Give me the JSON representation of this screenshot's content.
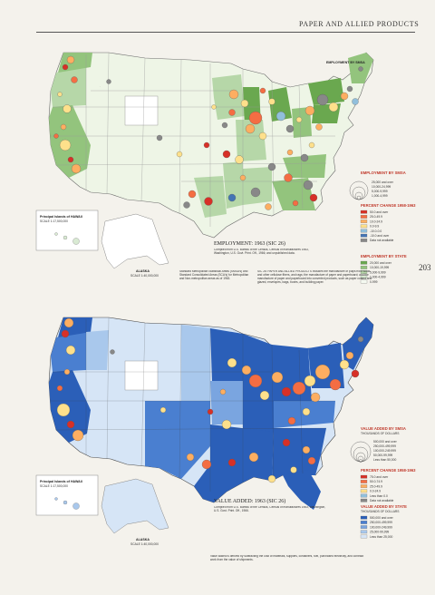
{
  "header": {
    "title": "PAPER AND ALLIED PRODUCTS",
    "page_number": "203"
  },
  "top_map": {
    "title": "EMPLOYMENT: 1963 (SIC 26)",
    "source": "Compiled from U.S. Bureau of the Census, Census of manufactures 1963, Washington, U.S. Govt. Print. Off., 1966; and unpublished data.",
    "inset_hawaii": {
      "title": "Principal Islands of HAWAII",
      "scale": "SCALE 1:17,500,000"
    },
    "inset_alaska": {
      "title": "ALASKA",
      "scale": "SCALE 1:40,000,000"
    },
    "legend_smsa": {
      "title": "EMPLOYMENT BY SMSA",
      "sizes": [
        "25,000 and over",
        "10,000-24,999",
        "5,000-9,999",
        "1,000-4,999"
      ]
    },
    "legend_change": {
      "title": "PERCENT CHANGE 1958-1963",
      "items": [
        {
          "label": "50.0 and over",
          "color": "#d73027"
        },
        {
          "label": "25.0-49.9",
          "color": "#f46d43"
        },
        {
          "label": "10.0-24.9",
          "color": "#fdae61"
        },
        {
          "label": "0.0-9.9",
          "color": "#fee08b"
        },
        {
          "label": "-10.0-0.0",
          "color": "#91bfdb"
        },
        {
          "label": "-10.0 and over",
          "color": "#4575b4"
        },
        {
          "label": "Data not available",
          "color": "#888888"
        }
      ]
    },
    "legend_state": {
      "title": "EMPLOYMENT BY STATE",
      "items": [
        {
          "label": "20,000 and over",
          "color": "#6aa84f"
        },
        {
          "label": "10,000-19,999",
          "color": "#93c47d"
        },
        {
          "label": "5,000-9,999",
          "color": "#b6d7a8"
        },
        {
          "label": "1,000-4,999",
          "color": "#d9ead3"
        },
        {
          "label": "0-999",
          "color": "#f4f9f0"
        }
      ]
    }
  },
  "middle_text": {
    "left": "Standard Metropolitan Statistical Areas (SMSA's) and Standard Consolidated Areas (SCA's) for Metropolitan and Non-metropolitan areas as of 1963.",
    "right": "SIC 26: PAPER AND ALLIED PRODUCTS includes the manufacture of pulps from wood and other cellulose fibers, and rags; the manufacture of paper and paperboard; and the manufacture of paper and paperboard into converted products, such as paper coated and glazed, envelopes, bags, boxes, and building paper."
  },
  "bottom_map": {
    "title": "VALUE ADDED: 1963 (SIC 26)",
    "source": "Compiled from U.S. Bureau of the Census, Census of manufactures 1963, Washington, U.S. Govt. Print. Off., 1966.",
    "inset_hawaii": {
      "title": "Principal Islands of HAWAII",
      "scale": "SCALE 1:17,500,000"
    },
    "inset_alaska": {
      "title": "ALASKA",
      "scale": "SCALE 1:40,000,000"
    },
    "legend_smsa": {
      "title": "VALUE ADDED BY SMSA",
      "subtitle": "THOUSANDS OF DOLLARS",
      "sizes": [
        "500,000 and over",
        "250,000-499,999",
        "100,000-249,999",
        "50,000-99,999",
        "Less than 50,000"
      ]
    },
    "legend_change": {
      "title": "PERCENT CHANGE 1958-1963",
      "items": [
        {
          "label": "75.0 and over",
          "color": "#d73027"
        },
        {
          "label": "50.0-74.9",
          "color": "#f46d43"
        },
        {
          "label": "25.0-49.9",
          "color": "#fdae61"
        },
        {
          "label": "0.0-24.9",
          "color": "#fee08b"
        },
        {
          "label": "Less than 0.0",
          "color": "#91bfdb"
        },
        {
          "label": "Data not available",
          "color": "#888888"
        }
      ]
    },
    "legend_state": {
      "title": "VALUE ADDED BY STATE",
      "subtitle": "THOUSANDS OF DOLLARS",
      "items": [
        {
          "label": "500,000 and over",
          "color": "#2b5fb8"
        },
        {
          "label": "250,000-499,999",
          "color": "#4a7fd0"
        },
        {
          "label": "100,000-249,999",
          "color": "#7aa5e0"
        },
        {
          "label": "25,000-99,999",
          "color": "#a9c8ec"
        },
        {
          "label": "Less than 25,000",
          "color": "#d6e5f6"
        }
      ]
    },
    "footnote": "Value added is derived by subtracting the cost of materials, supplies, containers, fuel, purchased electricity, and contract work from the value of shipments."
  },
  "colors": {
    "background": "#f4f2ec",
    "water": "#ffffff"
  }
}
